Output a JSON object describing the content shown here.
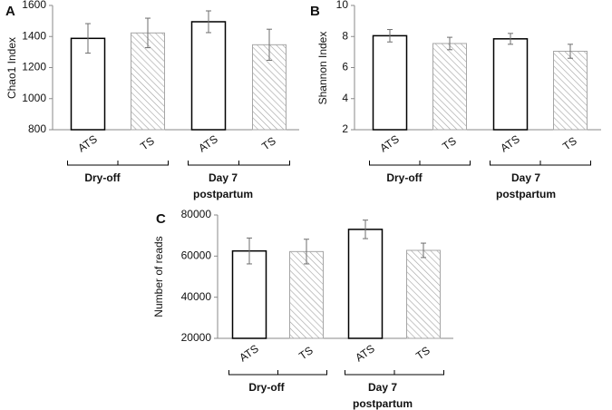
{
  "colors": {
    "axis": "#8a8a8a",
    "ats_edge": "#000000",
    "ats_fill": "#ffffff",
    "ts_edge": "#a6a6a6",
    "ts_hatch": "#a6a6a6",
    "error_bar": "#6e6e6e"
  },
  "chart_data": [
    {
      "type": "bar",
      "panel": "A",
      "ylabel": "Chao1 Index",
      "xlabel": "",
      "ylim": [
        800,
        1600
      ],
      "yticks": [
        800,
        1000,
        1200,
        1400,
        1600
      ],
      "grid": false,
      "categories": [
        "ATS",
        "TS",
        "ATS",
        "TS"
      ],
      "groups": [
        {
          "label": "Dry-off",
          "lines": [
            "Dry-off"
          ]
        },
        {
          "label": "Day 7 postpartum",
          "lines": [
            "Day 7",
            "postpartum"
          ]
        }
      ],
      "values": [
        1388,
        1423,
        1495,
        1347
      ],
      "errors": [
        95,
        95,
        70,
        100
      ]
    },
    {
      "type": "bar",
      "panel": "B",
      "ylabel": "Shannon Index",
      "xlabel": "",
      "ylim": [
        2,
        10
      ],
      "yticks": [
        2,
        4,
        6,
        8,
        10
      ],
      "grid": false,
      "categories": [
        "ATS",
        "TS",
        "ATS",
        "TS"
      ],
      "groups": [
        {
          "label": "Dry-off",
          "lines": [
            "Dry-off"
          ]
        },
        {
          "label": "Day 7 postpartum",
          "lines": [
            "Day 7",
            "postpartum"
          ]
        }
      ],
      "values": [
        8.05,
        7.55,
        7.85,
        7.05
      ],
      "errors": [
        0.4,
        0.4,
        0.35,
        0.45
      ]
    },
    {
      "type": "bar",
      "panel": "C",
      "ylabel": "Number of reads",
      "xlabel": "",
      "ylim": [
        20000,
        80000
      ],
      "yticks": [
        20000,
        40000,
        60000,
        80000
      ],
      "grid": false,
      "categories": [
        "ATS",
        "TS",
        "ATS",
        "TS"
      ],
      "groups": [
        {
          "label": "Dry-off",
          "lines": [
            "Dry-off"
          ]
        },
        {
          "label": "Day 7 postpartum",
          "lines": [
            "Day 7",
            "postpartum"
          ]
        }
      ],
      "values": [
        62500,
        62200,
        73000,
        62800
      ],
      "errors": [
        6300,
        6000,
        4500,
        3500
      ]
    }
  ]
}
